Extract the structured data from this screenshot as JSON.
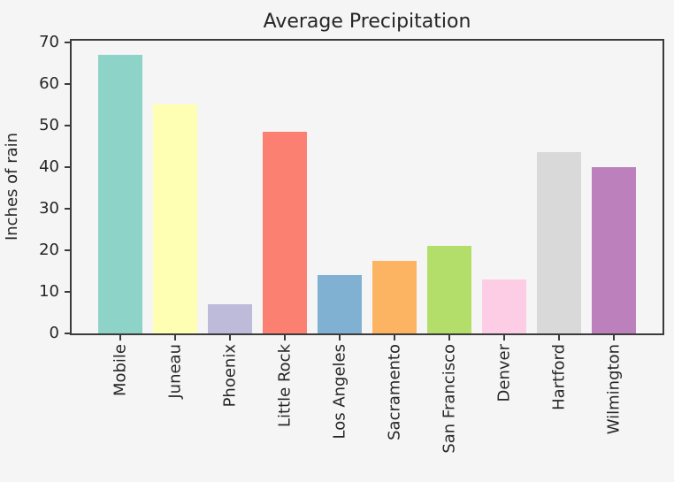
{
  "figure": {
    "background_color": "#f5f5f5",
    "axis_color": "#3b3b3b",
    "text_color": "#262626"
  },
  "chart_data": {
    "type": "bar",
    "title": "Average Precipitation",
    "xlabel": "",
    "ylabel": "Inches of rain",
    "categories": [
      "Mobile",
      "Juneau",
      "Phoenix",
      "Little Rock",
      "Los Angeles",
      "Sacramento",
      "San Francisco",
      "Denver",
      "Hartford",
      "Wilmington"
    ],
    "values": [
      67,
      55,
      7,
      48.5,
      14,
      17.5,
      21,
      13,
      43.5,
      40
    ],
    "bar_colors": [
      "#8dd3c7",
      "#ffffb3",
      "#bebada",
      "#fb8072",
      "#80b1d3",
      "#fdb462",
      "#b3de69",
      "#fccde5",
      "#d9d9d9",
      "#bc80bd"
    ],
    "ylim": [
      0,
      70.35
    ],
    "yticks": [
      0,
      10,
      20,
      30,
      40,
      50,
      60,
      70
    ],
    "x_tick_label_rotation_deg": 90,
    "grid": false,
    "legend_position": "none"
  }
}
